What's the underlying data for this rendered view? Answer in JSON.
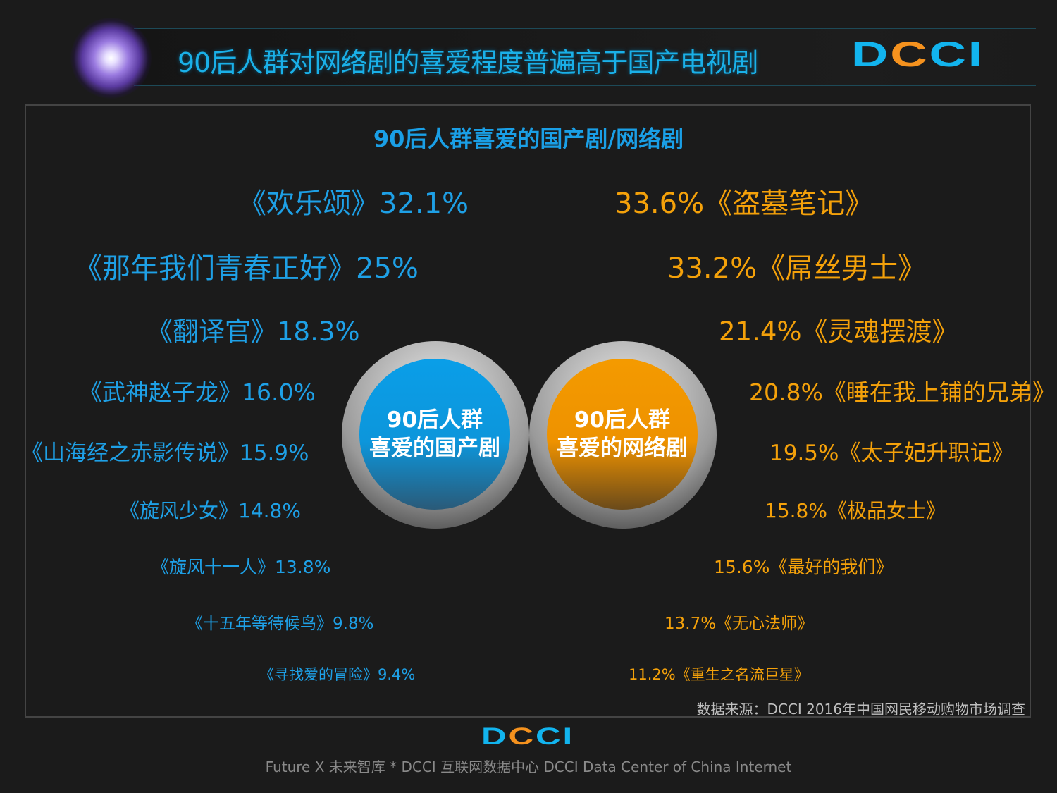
{
  "header": {
    "title": "90后人群对网络剧的喜爱程度普遍高于国产电视剧",
    "logo": {
      "d": "D",
      "c1": "C",
      "c2": "C",
      "i": "I"
    }
  },
  "main": {
    "subtitle": "90后人群喜爱的国产剧/网络剧",
    "left_circle": {
      "line1": "90后人群",
      "line2": "喜爱的国产剧"
    },
    "right_circle": {
      "line1": "90后人群",
      "line2": "喜爱的网络剧"
    },
    "tv_dramas": [
      "《欢乐颂》32.1%",
      "《那年我们青春正好》25%",
      "《翻译官》18.3%",
      "《武神赵子龙》16.0%",
      "《山海经之赤影传说》15.9%",
      "《旋风少女》14.8%",
      "《旋风十一人》13.8%",
      "《十五年等待候鸟》9.8%",
      "《寻找爱的冒险》9.4%"
    ],
    "web_dramas": [
      "33.6%《盗墓笔记》",
      "33.2%《屌丝男士》",
      "21.4%《灵魂摆渡》",
      "20.8%《睡在我上铺的兄弟》",
      "19.5%《太子妃升职记》",
      "15.8%《极品女士》",
      "15.6%《最好的我们》",
      "13.7%《无心法师》",
      "11.2%《重生之名流巨星》"
    ],
    "source": "数据来源：DCCI 2016年中国网民移动购物市场调查"
  },
  "footer": {
    "text": "Future X 未来智库 * DCCI 互联网数据中心 DCCI Data Center of China Internet"
  },
  "colors": {
    "tv": "#1ea0e6",
    "web": "#f4a10a",
    "background": "#1b1b1b"
  }
}
